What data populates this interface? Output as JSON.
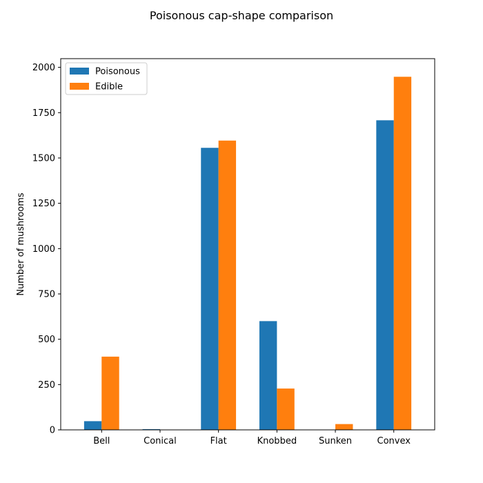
{
  "chart_data": {
    "type": "bar",
    "title": "Poisonous cap-shape comparison",
    "xlabel": "",
    "ylabel": "Number of mushrooms",
    "categories": [
      "Bell",
      "Conical",
      "Flat",
      "Knobbed",
      "Sunken",
      "Convex"
    ],
    "series": [
      {
        "name": "Poisonous",
        "color": "#1f77b4",
        "values": [
          48,
          4,
          1556,
          600,
          0,
          1708
        ]
      },
      {
        "name": "Edible",
        "color": "#ff7f0e",
        "values": [
          404,
          0,
          1596,
          228,
          32,
          1948
        ]
      }
    ],
    "ylim": [
      0,
      2048
    ],
    "yticks": [
      0,
      250,
      500,
      750,
      1000,
      1250,
      1500,
      1750,
      2000
    ],
    "grid": false,
    "legend": "top-left"
  }
}
